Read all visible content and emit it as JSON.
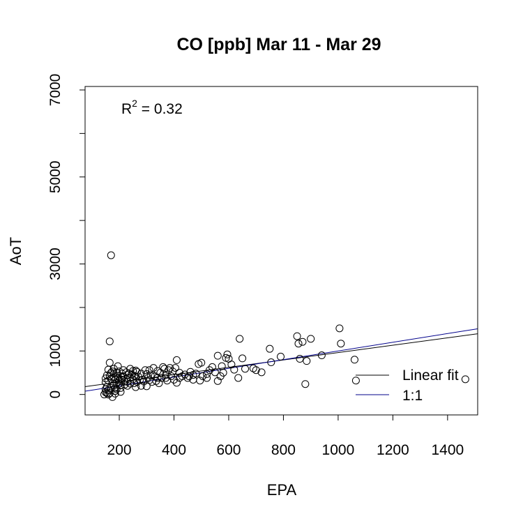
{
  "chart_data": {
    "type": "scatter",
    "title": "CO [ppb] Mar 11 - Mar 29",
    "xlabel": "EPA",
    "ylabel": "AoT",
    "xlim": [
      75,
      1510
    ],
    "ylim": [
      -470,
      7080
    ],
    "xticks": [
      200,
      400,
      600,
      800,
      1000,
      1200,
      1400
    ],
    "yticks": [
      0,
      1000,
      3000,
      5000,
      7000
    ],
    "yticks_minor": [
      0,
      1000,
      2000,
      3000,
      4000,
      5000,
      6000,
      7000
    ],
    "annotation": {
      "base": "R",
      "sup": "2",
      "rest": " = 0.32"
    },
    "legend": {
      "placement": "bottom-right",
      "entries": [
        {
          "label": "Linear fit",
          "color": "#000000"
        },
        {
          "label": "1:1",
          "color": "#00008b"
        }
      ]
    },
    "lines": [
      {
        "name": "Linear fit",
        "color": "#000000",
        "points": [
          [
            75,
            180
          ],
          [
            1510,
            1395
          ]
        ]
      },
      {
        "name": "1:1",
        "color": "#00008b",
        "points": [
          [
            75,
            75
          ],
          [
            1510,
            1510
          ]
        ]
      }
    ],
    "marker": "open-circle",
    "points": [
      [
        170,
        3200
      ],
      [
        165,
        1220
      ],
      [
        165,
        730
      ],
      [
        160,
        570
      ],
      [
        175,
        530
      ],
      [
        180,
        480
      ],
      [
        150,
        50
      ],
      [
        160,
        100
      ],
      [
        170,
        150
      ],
      [
        180,
        210
      ],
      [
        145,
        0
      ],
      [
        155,
        30
      ],
      [
        175,
        -60
      ],
      [
        185,
        80
      ],
      [
        190,
        260
      ],
      [
        200,
        330
      ],
      [
        205,
        210
      ],
      [
        215,
        420
      ],
      [
        220,
        300
      ],
      [
        230,
        380
      ],
      [
        235,
        480
      ],
      [
        240,
        250
      ],
      [
        250,
        350
      ],
      [
        255,
        430
      ],
      [
        260,
        550
      ],
      [
        265,
        290
      ],
      [
        270,
        410
      ],
      [
        280,
        200
      ],
      [
        285,
        340
      ],
      [
        290,
        300
      ],
      [
        300,
        470
      ],
      [
        305,
        380
      ],
      [
        310,
        560
      ],
      [
        320,
        290
      ],
      [
        330,
        420
      ],
      [
        335,
        310
      ],
      [
        350,
        500
      ],
      [
        355,
        380
      ],
      [
        360,
        630
      ],
      [
        370,
        450
      ],
      [
        375,
        320
      ],
      [
        380,
        560
      ],
      [
        390,
        420
      ],
      [
        400,
        340
      ],
      [
        405,
        610
      ],
      [
        410,
        790
      ],
      [
        420,
        500
      ],
      [
        430,
        420
      ],
      [
        450,
        380
      ],
      [
        460,
        520
      ],
      [
        470,
        450
      ],
      [
        490,
        700
      ],
      [
        500,
        730
      ],
      [
        495,
        320
      ],
      [
        505,
        420
      ],
      [
        520,
        470
      ],
      [
        540,
        630
      ],
      [
        550,
        510
      ],
      [
        560,
        890
      ],
      [
        570,
        420
      ],
      [
        575,
        650
      ],
      [
        590,
        840
      ],
      [
        595,
        920
      ],
      [
        600,
        820
      ],
      [
        610,
        690
      ],
      [
        640,
        1280
      ],
      [
        650,
        830
      ],
      [
        660,
        590
      ],
      [
        690,
        600
      ],
      [
        700,
        560
      ],
      [
        720,
        510
      ],
      [
        750,
        1050
      ],
      [
        755,
        740
      ],
      [
        790,
        870
      ],
      [
        850,
        1340
      ],
      [
        855,
        1170
      ],
      [
        860,
        820
      ],
      [
        870,
        1210
      ],
      [
        880,
        240
      ],
      [
        885,
        770
      ],
      [
        900,
        1280
      ],
      [
        940,
        900
      ],
      [
        1005,
        1520
      ],
      [
        1010,
        1170
      ],
      [
        1060,
        800
      ],
      [
        1065,
        320
      ],
      [
        1465,
        350
      ],
      [
        635,
        380
      ],
      [
        560,
        310
      ],
      [
        520,
        380
      ],
      [
        470,
        340
      ],
      [
        440,
        460
      ],
      [
        410,
        270
      ],
      [
        345,
        260
      ],
      [
        300,
        190
      ],
      [
        260,
        170
      ],
      [
        230,
        200
      ],
      [
        205,
        150
      ],
      [
        190,
        120
      ],
      [
        155,
        170
      ],
      [
        150,
        280
      ],
      [
        160,
        320
      ],
      [
        170,
        360
      ],
      [
        180,
        400
      ],
      [
        185,
        340
      ],
      [
        195,
        430
      ],
      [
        210,
        390
      ],
      [
        225,
        510
      ],
      [
        240,
        590
      ],
      [
        250,
        540
      ],
      [
        230,
        450
      ],
      [
        210,
        480
      ],
      [
        200,
        530
      ],
      [
        180,
        590
      ],
      [
        195,
        650
      ],
      [
        215,
        560
      ],
      [
        245,
        460
      ],
      [
        265,
        520
      ],
      [
        280,
        480
      ],
      [
        295,
        560
      ],
      [
        315,
        440
      ],
      [
        325,
        610
      ],
      [
        340,
        540
      ],
      [
        365,
        590
      ],
      [
        385,
        610
      ],
      [
        395,
        530
      ],
      [
        175,
        260
      ],
      [
        165,
        420
      ],
      [
        185,
        150
      ],
      [
        200,
        250
      ],
      [
        220,
        230
      ],
      [
        165,
        30
      ],
      [
        150,
        120
      ],
      [
        160,
        0
      ],
      [
        185,
        20
      ],
      [
        205,
        60
      ],
      [
        230,
        290
      ],
      [
        255,
        260
      ],
      [
        275,
        330
      ],
      [
        310,
        330
      ],
      [
        340,
        380
      ],
      [
        370,
        380
      ],
      [
        420,
        380
      ],
      [
        455,
        420
      ],
      [
        480,
        480
      ],
      [
        530,
        560
      ],
      [
        580,
        500
      ],
      [
        620,
        570
      ],
      [
        150,
        370
      ],
      [
        155,
        440
      ],
      [
        170,
        500
      ],
      [
        190,
        500
      ],
      [
        210,
        340
      ],
      [
        240,
        380
      ],
      [
        260,
        410
      ],
      [
        195,
        380
      ]
    ]
  }
}
